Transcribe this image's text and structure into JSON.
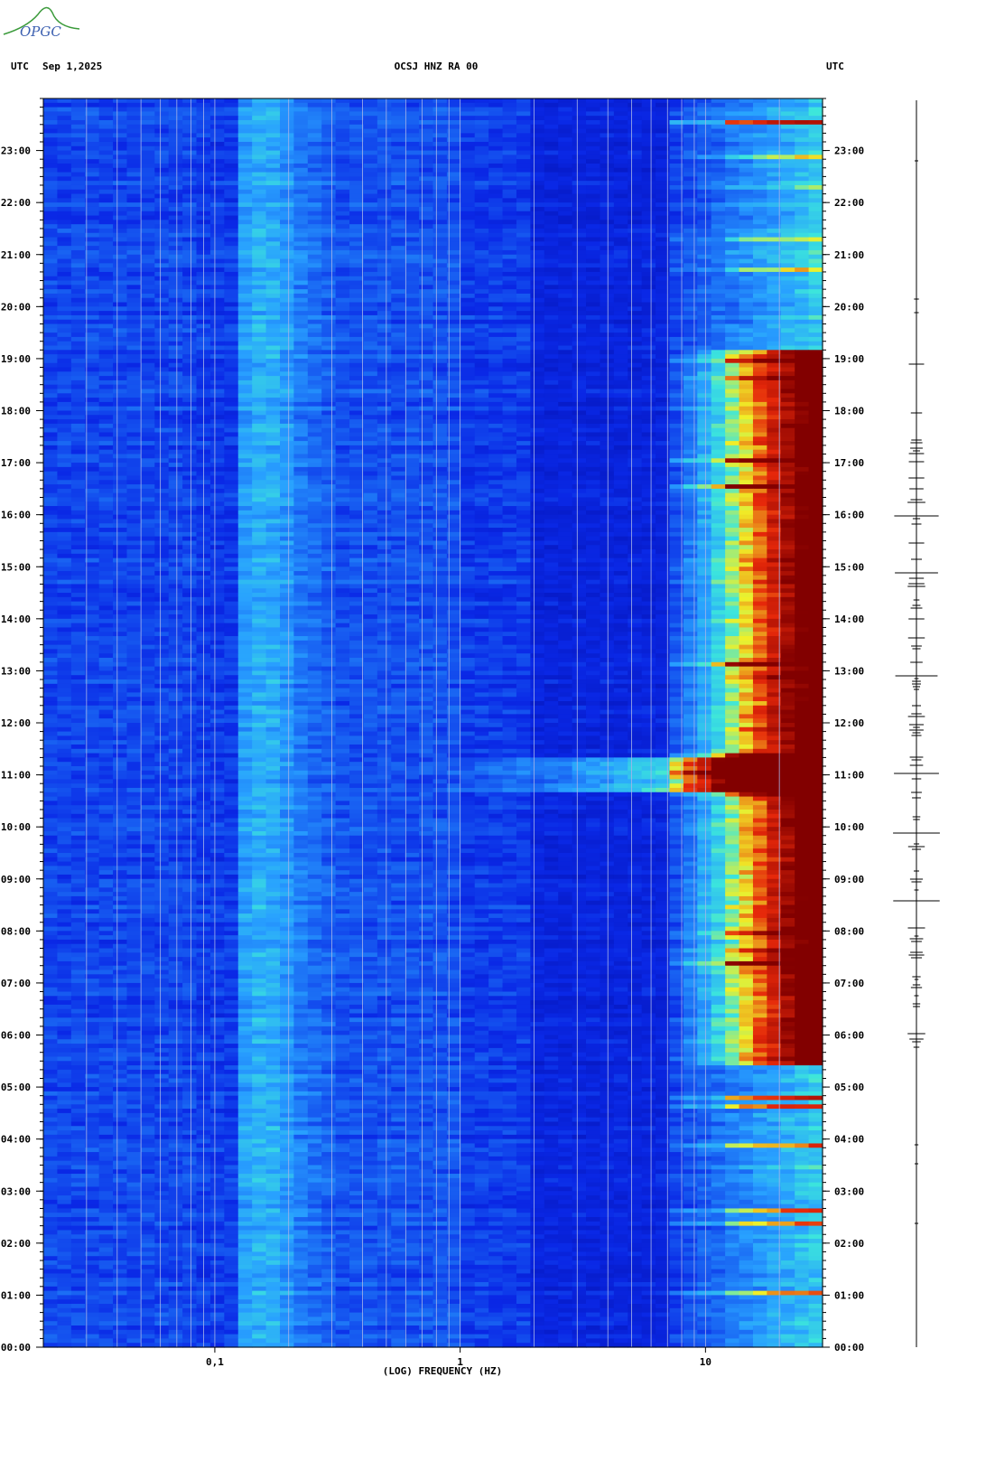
{
  "chart_data": {
    "type": "spectrogram",
    "logo": "OPGC",
    "left_label": "UTC",
    "date": "Sep 1,2025",
    "title": "OCSJ HNZ RA 00",
    "right_label": "UTC",
    "xlabel": "(LOG) FREQUENCY (HZ)",
    "xscale": "log",
    "xlim": [
      0.02,
      30
    ],
    "xticks": [
      {
        "value": 0.1,
        "label": "0,1"
      },
      1,
      10
    ],
    "xgrid": [
      0.03,
      0.04,
      0.05,
      0.06,
      0.07,
      0.08,
      0.09,
      0.1,
      0.2,
      0.3,
      0.4,
      0.5,
      0.6,
      0.7,
      0.8,
      0.9,
      1,
      2,
      3,
      4,
      5,
      6,
      7,
      8,
      9,
      10,
      20
    ],
    "ylim": [
      0,
      24
    ],
    "yticks": [
      {
        "value": 0,
        "label": "00:00"
      },
      {
        "value": 1,
        "label": "01:00"
      },
      {
        "value": 2,
        "label": "02:00"
      },
      {
        "value": 3,
        "label": "03:00"
      },
      {
        "value": 4,
        "label": "04:00"
      },
      {
        "value": 5,
        "label": "05:00"
      },
      {
        "value": 6,
        "label": "06:00"
      },
      {
        "value": 7,
        "label": "07:00"
      },
      {
        "value": 8,
        "label": "08:00"
      },
      {
        "value": 9,
        "label": "09:00"
      },
      {
        "value": 10,
        "label": "10:00"
      },
      {
        "value": 11,
        "label": "11:00"
      },
      {
        "value": 12,
        "label": "12:00"
      },
      {
        "value": 13,
        "label": "13:00"
      },
      {
        "value": 14,
        "label": "14:00"
      },
      {
        "value": 15,
        "label": "15:00"
      },
      {
        "value": 16,
        "label": "16:00"
      },
      {
        "value": 17,
        "label": "17:00"
      },
      {
        "value": 18,
        "label": "18:00"
      },
      {
        "value": 19,
        "label": "19:00"
      },
      {
        "value": 20,
        "label": "20:00"
      },
      {
        "value": 21,
        "label": "21:00"
      },
      {
        "value": 22,
        "label": "22:00"
      },
      {
        "value": 23,
        "label": "23:00"
      }
    ]
  }
}
